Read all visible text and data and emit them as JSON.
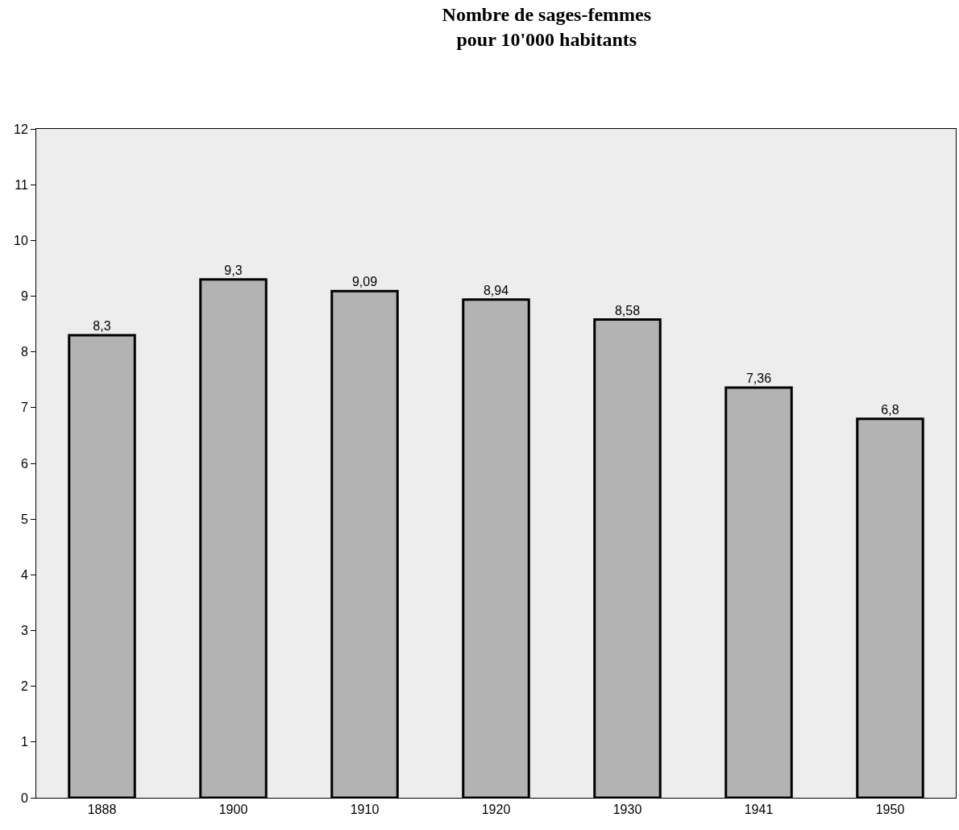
{
  "chart_data": {
    "type": "bar",
    "title": "Nombre de sages-femmes\npour 10'000 habitants",
    "categories": [
      "1888",
      "1900",
      "1910",
      "1920",
      "1930",
      "1941",
      "1950"
    ],
    "values": [
      8.3,
      9.3,
      9.09,
      8.94,
      8.58,
      7.36,
      6.8
    ],
    "value_labels": [
      "8,3",
      "9,3",
      "9,09",
      "8,94",
      "8,58",
      "7,36",
      "6,8"
    ],
    "color": "#b3b3b3",
    "ylim": [
      0,
      12
    ],
    "yticks": [
      0,
      1,
      2,
      3,
      4,
      5,
      6,
      7,
      8,
      9,
      10,
      11,
      12
    ],
    "grid": false
  }
}
